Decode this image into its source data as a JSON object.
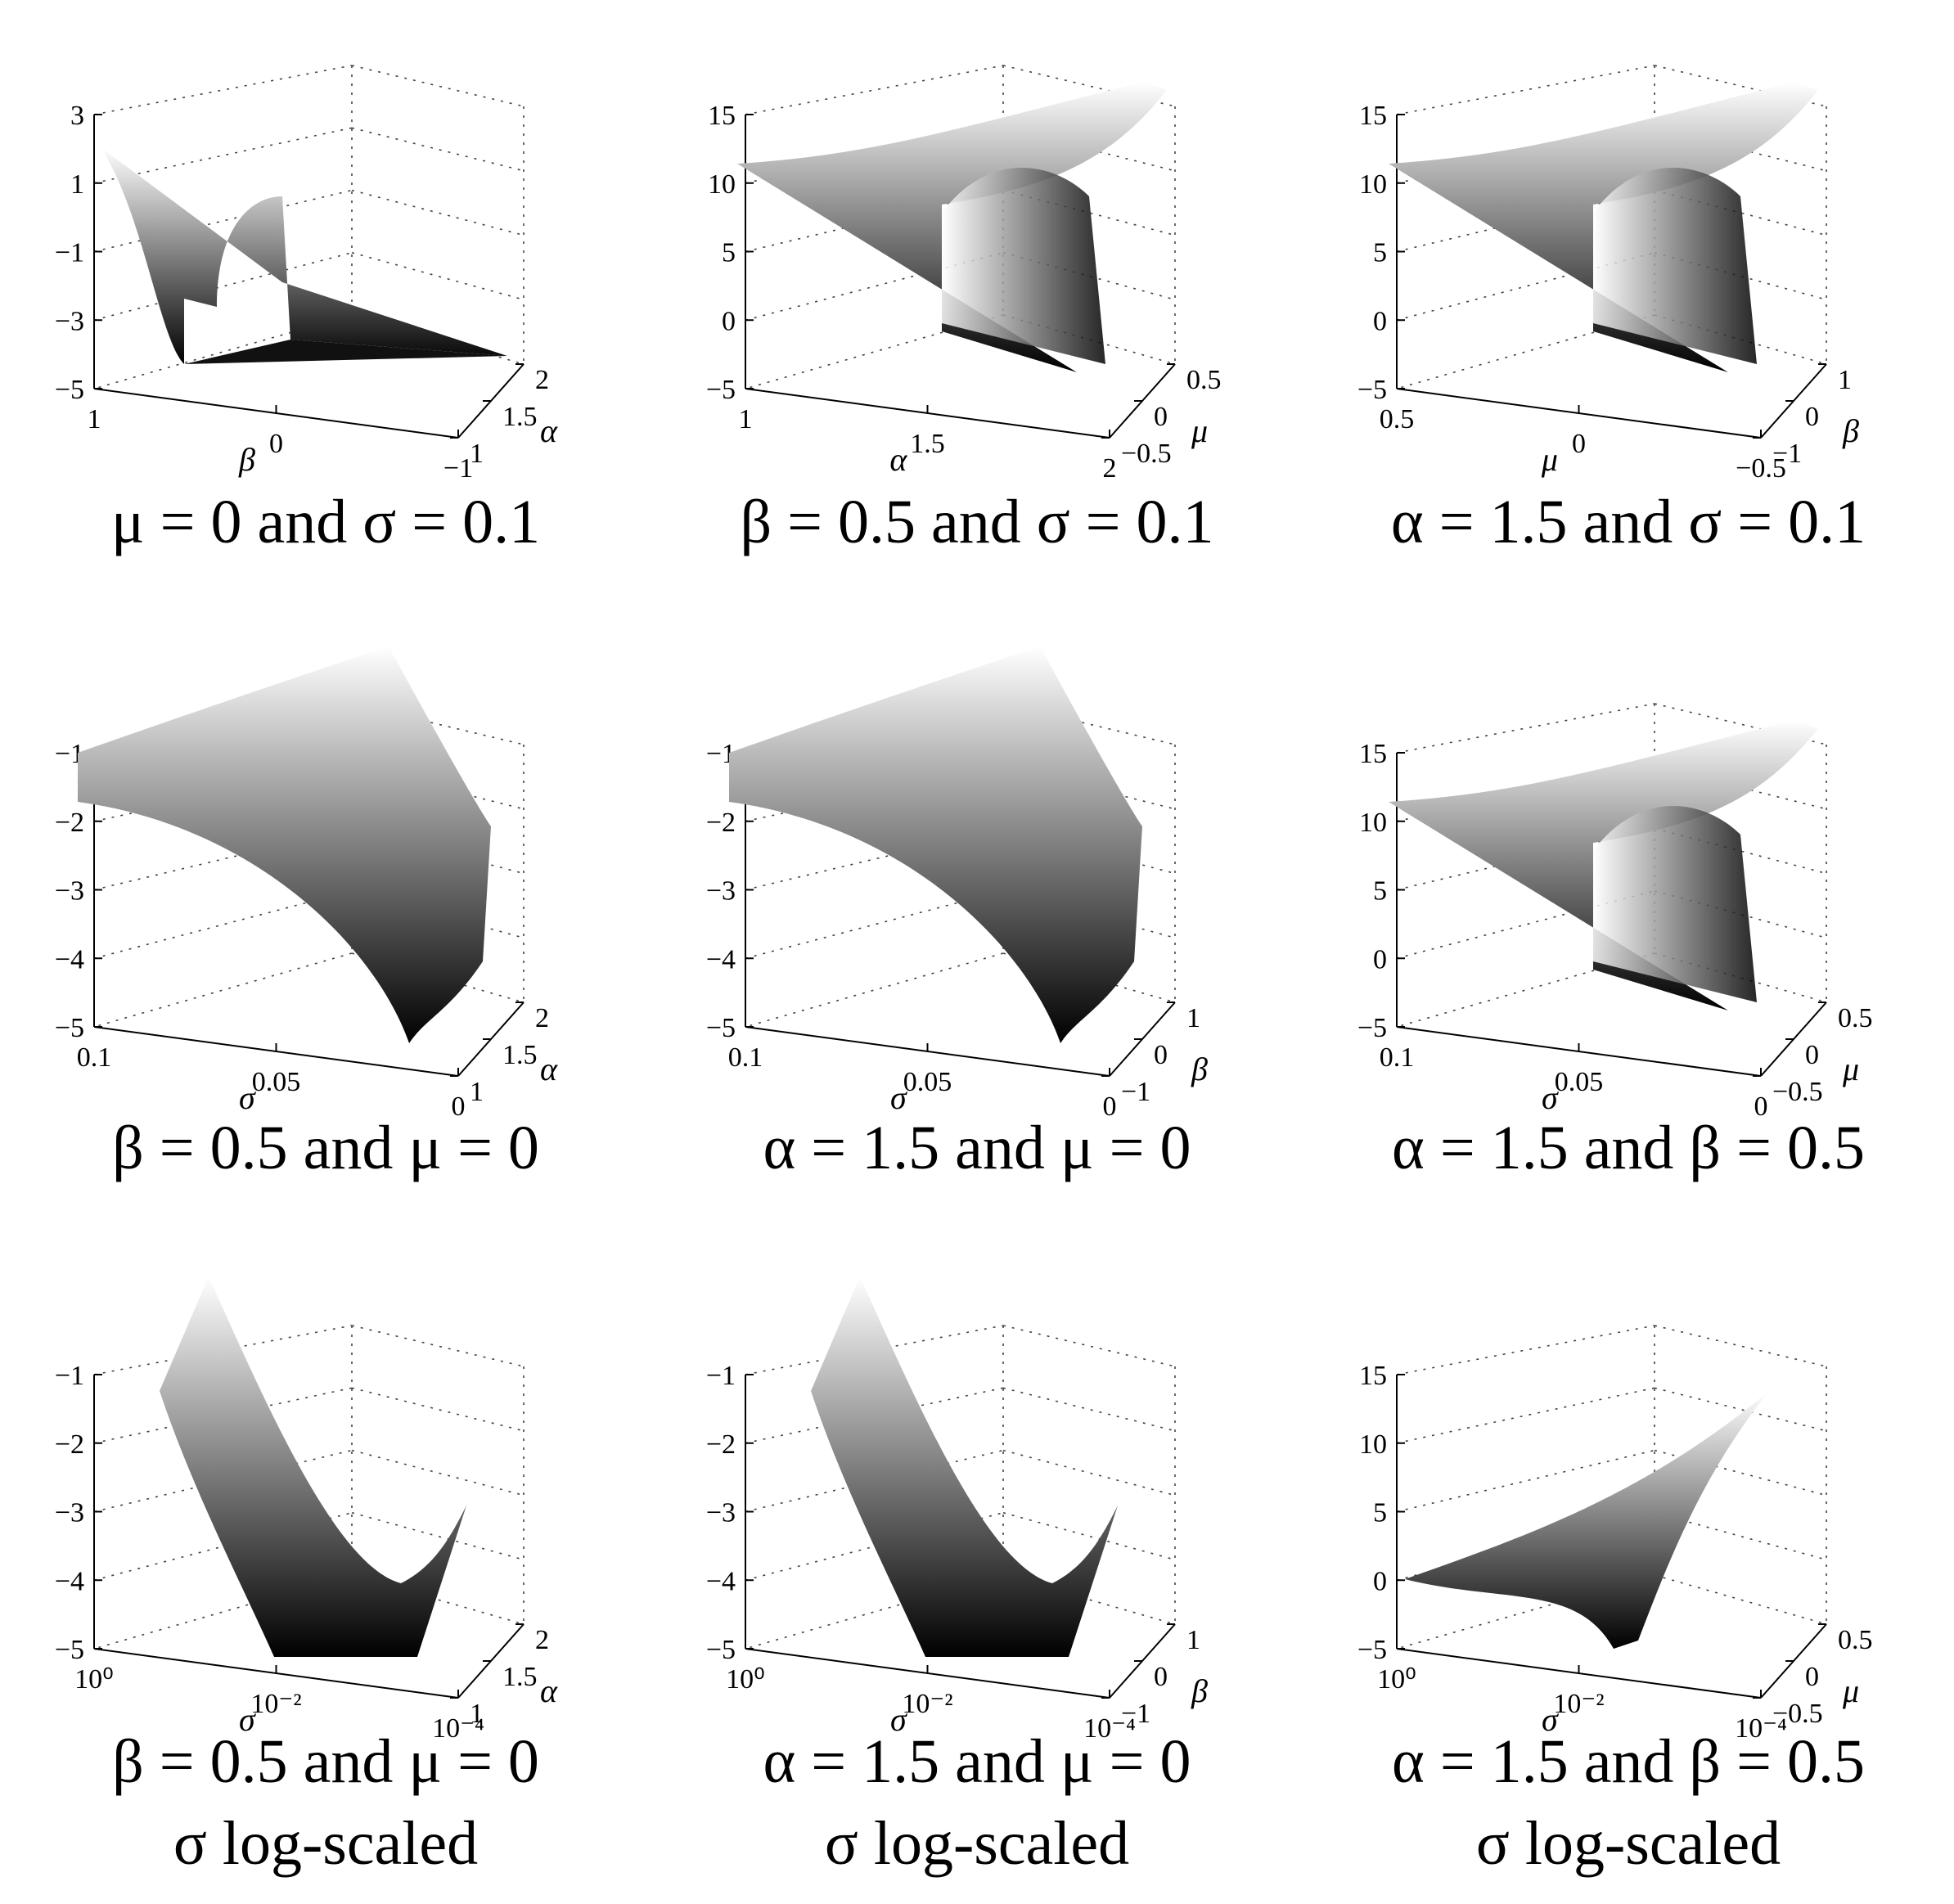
{
  "chart_data": [
    {
      "type": "surface",
      "caption_line1": "μ = 0 and σ = 0.1",
      "caption_line2": "",
      "zticks": [
        "3",
        "1",
        "−1",
        "−3",
        "−5"
      ],
      "xlabel": "β",
      "xticks": [
        "1",
        "0",
        "−1"
      ],
      "ylabel": "α",
      "yticks": [
        "1",
        "1.5",
        "2"
      ],
      "zlim": [
        -5,
        3
      ],
      "surface_shape": "double-wall",
      "colors": {
        "low": "#000000",
        "high": "#ffffff"
      }
    },
    {
      "type": "surface",
      "caption_line1": "β = 0.5 and σ = 0.1",
      "caption_line2": "",
      "zticks": [
        "15",
        "10",
        "5",
        "0",
        "−5"
      ],
      "xlabel": "α",
      "xticks": [
        "1",
        "1.5",
        "2"
      ],
      "ylabel": "μ",
      "yticks": [
        "−0.5",
        "0",
        "0.5"
      ],
      "zlim": [
        -5,
        15
      ],
      "surface_shape": "saddle-flat",
      "colors": {
        "low": "#000000",
        "high": "#ffffff"
      }
    },
    {
      "type": "surface",
      "caption_line1": "α = 1.5 and σ = 0.1",
      "caption_line2": "",
      "zticks": [
        "15",
        "10",
        "5",
        "0",
        "−5"
      ],
      "xlabel": "μ",
      "xticks": [
        "0.5",
        "0",
        "−0.5"
      ],
      "ylabel": "β",
      "yticks": [
        "−1",
        "0",
        "1"
      ],
      "zlim": [
        -5,
        15
      ],
      "surface_shape": "saddle-flat",
      "colors": {
        "low": "#000000",
        "high": "#ffffff"
      }
    },
    {
      "type": "surface",
      "caption_line1": "β = 0.5 and μ = 0",
      "caption_line2": "",
      "zticks": [
        "−1",
        "−2",
        "−3",
        "−4",
        "−5"
      ],
      "xlabel": "σ",
      "xticks": [
        "0.1",
        "0.05",
        "0"
      ],
      "ylabel": "α",
      "yticks": [
        "1",
        "1.5",
        "2"
      ],
      "zlim": [
        -5,
        -0.5
      ],
      "surface_shape": "curl-down",
      "colors": {
        "low": "#000000",
        "high": "#ffffff"
      }
    },
    {
      "type": "surface",
      "caption_line1": "α = 1.5 and μ = 0",
      "caption_line2": "",
      "zticks": [
        "−1",
        "−2",
        "−3",
        "−4",
        "−5"
      ],
      "xlabel": "σ",
      "xticks": [
        "0.1",
        "0.05",
        "0"
      ],
      "ylabel": "β",
      "yticks": [
        "−1",
        "0",
        "1"
      ],
      "zlim": [
        -5,
        -0.5
      ],
      "surface_shape": "curl-down",
      "colors": {
        "low": "#000000",
        "high": "#ffffff"
      }
    },
    {
      "type": "surface",
      "caption_line1": "α = 1.5 and β = 0.5",
      "caption_line2": "",
      "zticks": [
        "15",
        "10",
        "5",
        "0",
        "−5"
      ],
      "xlabel": "σ",
      "xticks": [
        "0.1",
        "0.05",
        "0"
      ],
      "ylabel": "μ",
      "yticks": [
        "−0.5",
        "0",
        "0.5"
      ],
      "zlim": [
        -5,
        15
      ],
      "surface_shape": "saddle-flat",
      "colors": {
        "low": "#000000",
        "high": "#ffffff"
      }
    },
    {
      "type": "surface",
      "caption_line1": "β = 0.5 and μ = 0",
      "caption_line2": "σ log-scaled",
      "zticks": [
        "−1",
        "−2",
        "−3",
        "−4",
        "−5"
      ],
      "xlabel": "σ",
      "xticks": [
        "10⁰",
        "10⁻²",
        "10⁻⁴"
      ],
      "ylabel": "α",
      "yticks": [
        "1",
        "1.5",
        "2"
      ],
      "zlim": [
        -5,
        -0.5
      ],
      "x_scale": "log",
      "surface_shape": "valley",
      "colors": {
        "low": "#000000",
        "high": "#ffffff"
      }
    },
    {
      "type": "surface",
      "caption_line1": "α = 1.5 and μ = 0",
      "caption_line2": "σ log-scaled",
      "zticks": [
        "−1",
        "−2",
        "−3",
        "−4",
        "−5"
      ],
      "xlabel": "σ",
      "xticks": [
        "10⁰",
        "10⁻²",
        "10⁻⁴"
      ],
      "ylabel": "β",
      "yticks": [
        "−1",
        "0",
        "1"
      ],
      "zlim": [
        -5,
        -0.5
      ],
      "x_scale": "log",
      "surface_shape": "valley",
      "colors": {
        "low": "#000000",
        "high": "#ffffff"
      }
    },
    {
      "type": "surface",
      "caption_line1": "α = 1.5 and β = 0.5",
      "caption_line2": "σ log-scaled",
      "zticks": [
        "15",
        "10",
        "5",
        "0",
        "−5"
      ],
      "xlabel": "σ",
      "xticks": [
        "10⁰",
        "10⁻²",
        "10⁻⁴"
      ],
      "ylabel": "μ",
      "yticks": [
        "−0.5",
        "0",
        "0.5"
      ],
      "zlim": [
        -5,
        15
      ],
      "x_scale": "log",
      "surface_shape": "fan",
      "colors": {
        "low": "#000000",
        "high": "#ffffff"
      }
    }
  ]
}
